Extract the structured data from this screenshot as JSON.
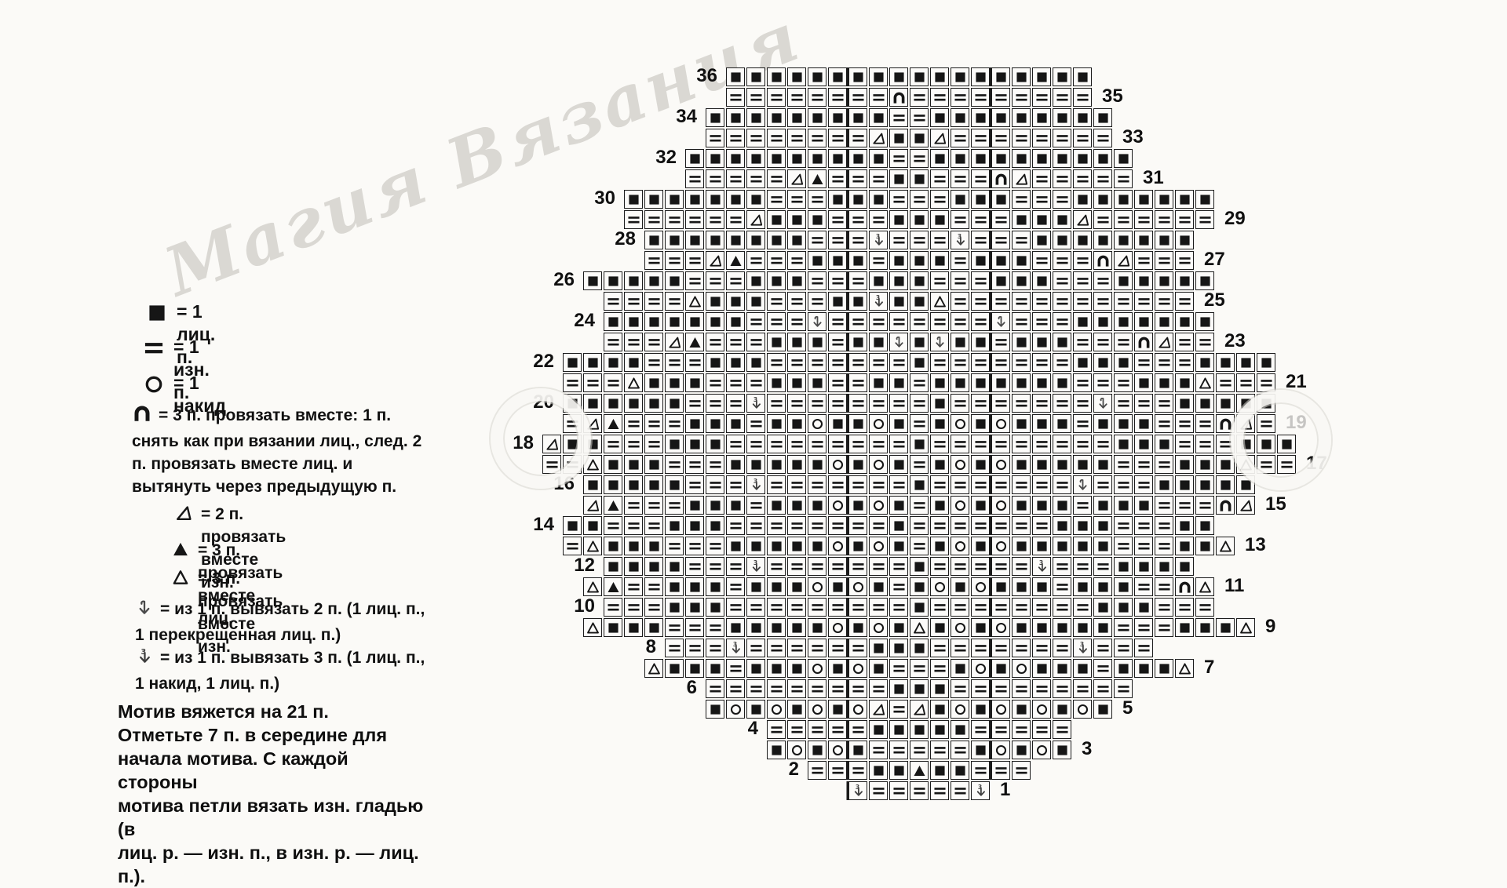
{
  "document": {
    "type": "scanned knitting chart page",
    "language": "ru"
  },
  "watermark": {
    "text": "Магия Вязания"
  },
  "legend": {
    "items": [
      {
        "symbol": "K",
        "symbol_name": "knit-square-icon",
        "text": "=  1  лиц. п."
      },
      {
        "symbol": "P",
        "symbol_name": "purl-square-icon",
        "text": "=  1  изн. п."
      },
      {
        "symbol": "O",
        "symbol_name": "yarnover-circle-icon",
        "text": "=  1  накид"
      },
      {
        "symbol": "N",
        "symbol_name": "sk2p-arch-icon",
        "text": "=  3 п. провязать вместе: 1 п. снять как при вязании лиц., след. 2 п. провязать вместе лиц. и вытянуть через предыдущую п."
      },
      {
        "symbol": "D",
        "symbol_name": "p2tog-triangle-icon",
        "text": "=  2 п. провязать вместе изн."
      },
      {
        "symbol": "T",
        "symbol_name": "k3tog-triangle-icon",
        "text": "=  3 п. провязать вместе лиц."
      },
      {
        "symbol": "t",
        "symbol_name": "p3tog-triangle-icon",
        "text": "=  3 п. провязать вместе изн."
      },
      {
        "symbol": "2",
        "symbol_name": "make2-arrow-icon",
        "text": "=  из 1 п. вывязать 2 п. (1 лиц. п., 1 перекрещенная лиц. п.)"
      },
      {
        "symbol": "3",
        "symbol_name": "make3-arrow-icon",
        "text": "=  из 1 п. вывязать 3 п. (1 лиц. п., 1 накид, 1 лиц. п.)"
      }
    ]
  },
  "note": {
    "lines": [
      "Мотив вяжется на 21 п.",
      "Отметьте 7 п. в середине для",
      "начала мотива. С каждой стороны",
      "мотива петли вязать изн. гладью (в",
      "лиц. р. — изн. п., в изн. р. — лиц. п.)."
    ]
  },
  "chart": {
    "symbols_key": {
      "K": "лицевая петля (filled square)",
      "P": "изнаночная петля (square with two bars)",
      "O": "накид (circle)",
      "D": "2 вместе изн (slanted right triangle)",
      "T": "3 вместе лиц (filled triangle)",
      "t": "3 вместе изн (open triangle)",
      "N": "3 вместе со снятой (arch)",
      "2": "из 1 п. вывязать 2 п. (arrow)",
      "3": "из 1 п. вывязать 3 п. (arrow with 3)"
    },
    "motif_boundary_columns": [
      15,
      22
    ],
    "rows": [
      {
        "row": 36,
        "label": "36",
        "side": "left",
        "start": 9,
        "cells": "KKKKKKKKKKKKKKKKKK"
      },
      {
        "row": 35,
        "label": "35",
        "side": "right",
        "start": 9,
        "cells": "PPPPPPPPNPPPPPPPPP"
      },
      {
        "row": 34,
        "label": "34",
        "side": "left",
        "start": 8,
        "cells": "KKKKKKKKKPPKKKKKKKKK"
      },
      {
        "row": 33,
        "label": "33",
        "side": "right",
        "start": 8,
        "cells": "PPPPPPPPDKKDPPPPPPPP"
      },
      {
        "row": 32,
        "label": "32",
        "side": "left",
        "start": 7,
        "cells": "KKKKKKKKKKPPKKKKKKKKKK"
      },
      {
        "row": 31,
        "label": "31",
        "side": "right",
        "start": 7,
        "cells": "PPPPPDTPPPKKPPPNDPPPPP"
      },
      {
        "row": 30,
        "label": "30",
        "side": "left",
        "start": 4,
        "cells": "KKKKKKKPPPKKKPPPKKKPPPKKKKKKK"
      },
      {
        "row": 29,
        "label": "29",
        "side": "right",
        "start": 4,
        "cells": "PPPPPPDKKKPPPKKKPPPKKKDPPPPPP"
      },
      {
        "row": 28,
        "label": "28",
        "side": "left",
        "start": 5,
        "cells": "KKKKKKKKPPP3PPP3PPPKKKKKKKK"
      },
      {
        "row": 27,
        "label": "27",
        "side": "right",
        "start": 5,
        "cells": "PPPDTPPPKKKPKKKPKKKPPPNDPPP"
      },
      {
        "row": 26,
        "label": "26",
        "side": "left",
        "start": 2,
        "cells": "KKKKKPPPKKKPPPKKKPPPKKKPPPKKKKK"
      },
      {
        "row": 25,
        "label": "25",
        "side": "right",
        "start": 3,
        "cells": "PPPPtKKKPPPKK3KKtPPPPPPPPPPPP"
      },
      {
        "row": 24,
        "label": "24",
        "side": "left",
        "start": 3,
        "cells": "KKKKKKKPPP2PPPPPPPP2PPPKKKKKKK"
      },
      {
        "row": 23,
        "label": "23",
        "side": "right",
        "start": 3,
        "cells": "PPPDTPPPKKKPKK2K2KKPKKKPPPNDPP"
      },
      {
        "row": 22,
        "label": "22",
        "side": "left",
        "start": 1,
        "cells": "KKKKPPPKKKPPPPPPPKPPPPPPPKKKPPPKKKK"
      },
      {
        "row": 21,
        "label": "21",
        "side": "right",
        "start": 1,
        "cells": "PPPtKKKPPPKKKPPKKPKKKKKKKPPPKKKtPPP"
      },
      {
        "row": 20,
        "label": "20",
        "side": "left",
        "start": 1,
        "cells": "KKKKKKPPP3PPPPPPPPKPPPPPPP2PPPKKKKK"
      },
      {
        "row": 19,
        "label": "19",
        "side": "right",
        "start": 1,
        "cells": "PDTPPPKKKPKKOKKOKPKOKOKKKPKKKPPPNDP"
      },
      {
        "row": 18,
        "label": "18",
        "side": "left",
        "start": 0,
        "cells": "DKKPPPKKKPPPPPPPPPKPPPPPPPPPKKKPPPKKK"
      },
      {
        "row": 17,
        "label": "17",
        "side": "right",
        "start": 0,
        "cells": "PPtKKKPPPKKKKKOKOKPKOKOKKKKKPPPKKKtPP"
      },
      {
        "row": 16,
        "label": "16",
        "side": "left",
        "start": 2,
        "cells": "KKKKKPPP3PPPPPPPKPPPPPPP2PPPKKKKK"
      },
      {
        "row": 15,
        "label": "15",
        "side": "right",
        "start": 2,
        "cells": "DTPPPKKKPKKKOKOKPKOKOKKKPKKKPPPND"
      },
      {
        "row": 14,
        "label": "14",
        "side": "left",
        "start": 1,
        "cells": "KKPPPKKKPPPPPPPPKPPPPPPPKKKPPPKK"
      },
      {
        "row": 13,
        "label": "13",
        "side": "right",
        "start": 1,
        "cells": "PtKKKPPPKKKKKOKOKPKOKOKKKKKPPPKKt"
      },
      {
        "row": 12,
        "label": "12",
        "side": "left",
        "start": 3,
        "cells": "KKKKPPP3PPPPPPPKPPPPP3PPPKKKK"
      },
      {
        "row": 11,
        "label": "11",
        "side": "right",
        "start": 2,
        "cells": "tTPPKKKPKKKOKOKPKOKOKKKPKKKPPNt"
      },
      {
        "row": 10,
        "label": "10",
        "side": "left",
        "start": 3,
        "cells": "PPPKKKPPPPPPPPPKPPPPPPPPKKKPPP"
      },
      {
        "row": 9,
        "label": "9",
        "side": "right",
        "start": 2,
        "cells": "tKKKPPPKKKKKOKOKtKOKOKKKKKPPPKKKt"
      },
      {
        "row": 8,
        "label": "8",
        "side": "left",
        "start": 6,
        "cells": "PPP3PPPPPPKKKPPPPPPP3PPP"
      },
      {
        "row": 7,
        "label": "7",
        "side": "right",
        "start": 5,
        "cells": "tKKKPKKKOKOKPPPKOKOKKKPKKKt"
      },
      {
        "row": 6,
        "label": "6",
        "side": "left",
        "start": 8,
        "cells": "PPPPPPPPPKKKPPPPPPPPP"
      },
      {
        "row": 5,
        "label": "5",
        "side": "right",
        "start": 8,
        "cells": "KOKOKOKODPDKOKOKOKOK"
      },
      {
        "row": 4,
        "label": "4",
        "side": "left",
        "start": 11,
        "cells": "PPPPPKKKKKPPPPP"
      },
      {
        "row": 3,
        "label": "3",
        "side": "right",
        "start": 11,
        "cells": "KOKOKPPPPPKOKOK"
      },
      {
        "row": 2,
        "label": "2",
        "side": "left",
        "start": 13,
        "cells": "PPPKKTKKPPP"
      },
      {
        "row": 1,
        "label": "1",
        "side": "right",
        "start": 15,
        "cells": "3PPPPP3"
      }
    ]
  }
}
